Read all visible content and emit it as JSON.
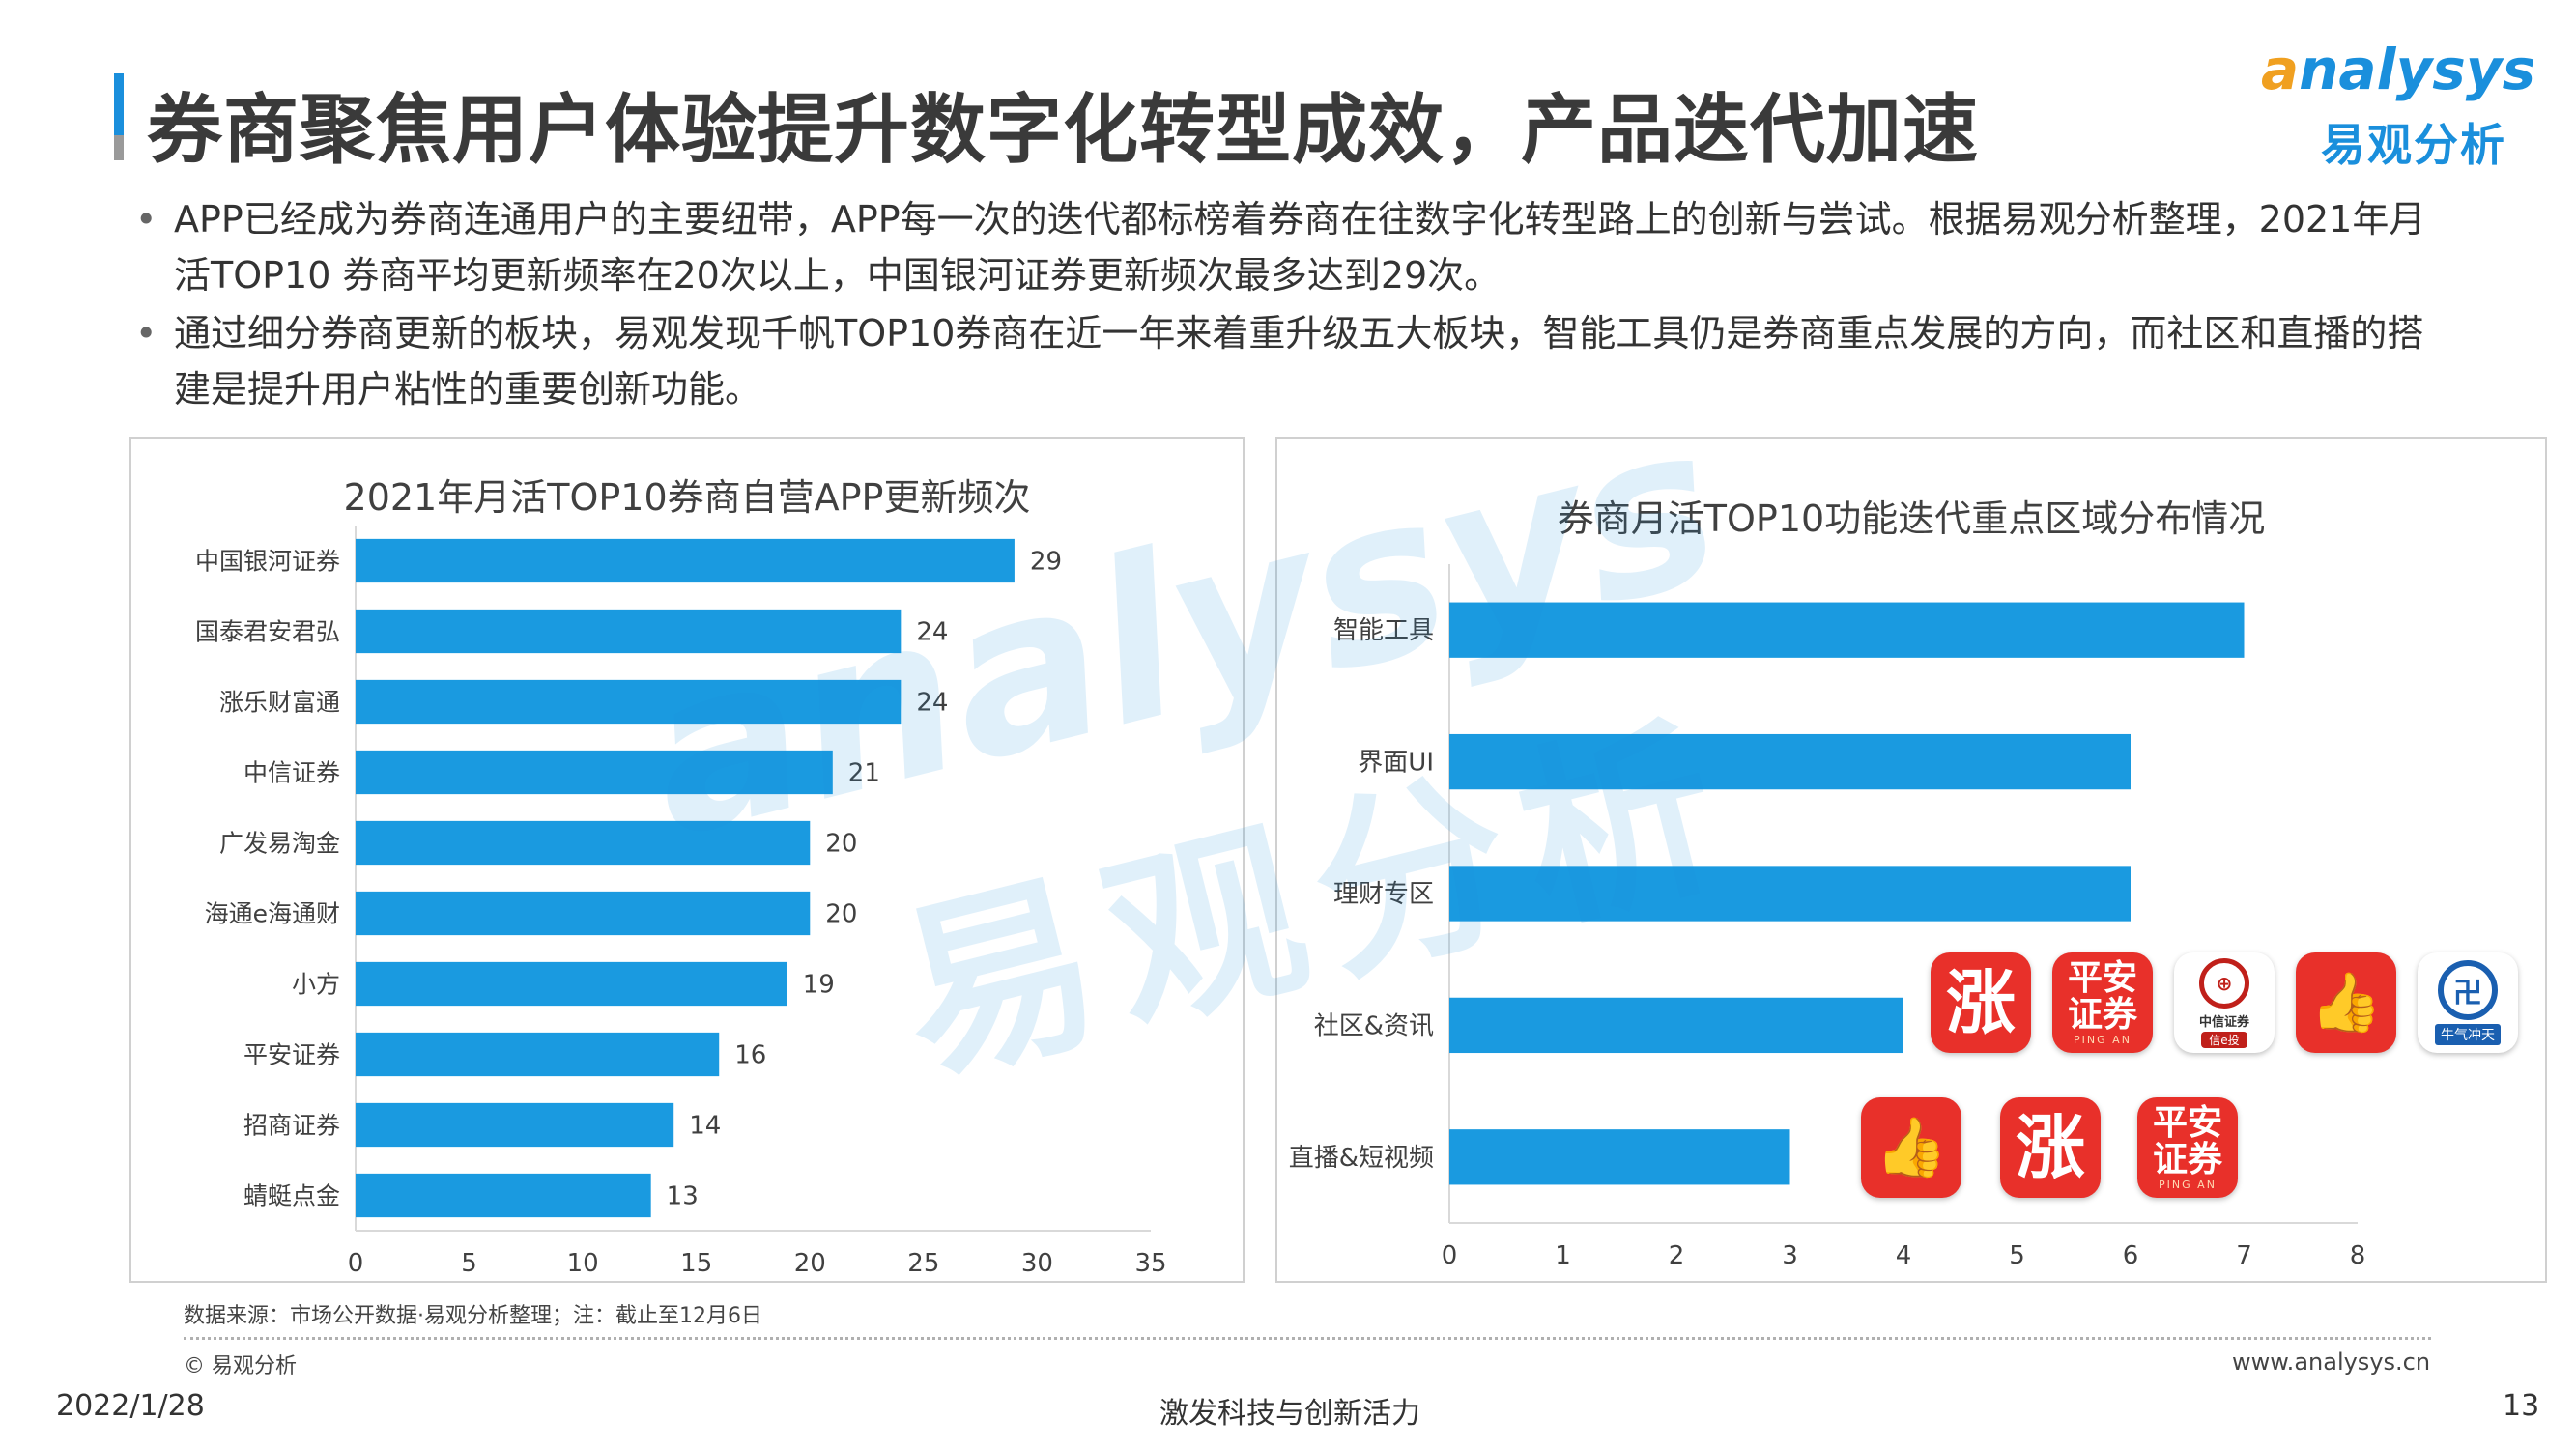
{
  "header": {
    "title": "券商聚焦用户体验提升数字化转型成效，产品迭代加速",
    "logo_en_prefix": "a",
    "logo_en_rest": "nalysys",
    "logo_cn": "易观分析"
  },
  "bullets": [
    "APP已经成为券商连通用户的主要纽带，APP每一次的迭代都标榜着券商在往数字化转型路上的创新与尝试。根据易观分析整理，2021年月活TOP10 券商平均更新频率在20次以上，中国银河证券更新频次最多达到29次。",
    "通过细分券商更新的板块，易观发现千帆TOP10券商在近一年来着重升级五大板块，智能工具仍是券商重点发展的方向，而社区和直播的搭建是提升用户粘性的重要创新功能。"
  ],
  "watermark": {
    "en": "analysys",
    "cn": "易观分析"
  },
  "chart_data": [
    {
      "type": "bar",
      "orientation": "horizontal",
      "title": "2021年月活TOP10券商自营APP更新频次",
      "categories": [
        "中国银河证券",
        "国泰君安君弘",
        "涨乐财富通",
        "中信证券",
        "广发易淘金",
        "海通e海通财",
        "小方",
        "平安证券",
        "招商证券",
        "蜻蜓点金"
      ],
      "values": [
        29,
        24,
        24,
        21,
        20,
        20,
        19,
        16,
        14,
        13
      ],
      "xlim": [
        0,
        35
      ],
      "xticks": [
        0,
        5,
        10,
        15,
        20,
        25,
        30,
        35
      ],
      "data_labels": true,
      "grid": false,
      "color": "#1a9ae0"
    },
    {
      "type": "bar",
      "orientation": "horizontal",
      "title": "券商月活TOP10功能迭代重点区域分布情况",
      "categories": [
        "智能工具",
        "界面UI",
        "理财专区",
        "社区&资讯",
        "直播&短视频"
      ],
      "values": [
        7,
        6,
        6,
        4,
        3
      ],
      "xlim": [
        0,
        8
      ],
      "xticks": [
        0,
        1,
        2,
        3,
        4,
        5,
        6,
        7,
        8
      ],
      "data_labels": false,
      "grid": false,
      "color": "#1a9ae0"
    }
  ],
  "app_icons": {
    "row1": [
      {
        "icon": "zhangle-icon",
        "text": "涨"
      },
      {
        "icon": "pingan-icon",
        "text_top": "平安",
        "text_bottom": "证券",
        "small": "PING AN"
      },
      {
        "icon": "citic-icon",
        "text": "中信证券",
        "badge": "信e投"
      },
      {
        "icon": "thumb-icon",
        "text": ""
      },
      {
        "icon": "huaxi-icon",
        "badge": "牛气冲天"
      }
    ],
    "row2": [
      {
        "icon": "thumb-icon",
        "text": ""
      },
      {
        "icon": "zhangle-icon",
        "text": "涨"
      },
      {
        "icon": "pingan-icon",
        "text_top": "平安",
        "text_bottom": "证券",
        "small": "PING AN"
      }
    ]
  },
  "footer": {
    "source": "数据来源：市场公开数据·易观分析整理；注：截止至12月6日",
    "copyright": "© 易观分析",
    "website": "www.analysys.cn",
    "date": "2022/1/28",
    "slogan": "激发科技与创新活力",
    "page": "13"
  },
  "colors": {
    "accent": "#1a8fdc",
    "bar": "#1a9ae0",
    "logo_orange": "#f0a020"
  }
}
